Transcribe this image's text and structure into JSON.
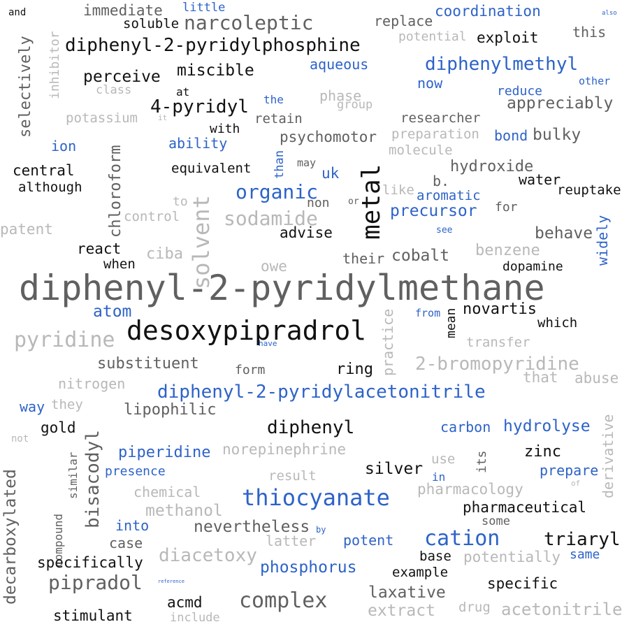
{
  "palette": {
    "black": "#111111",
    "dark_gray": "#606060",
    "light_gray": "#b8b8b8",
    "blue": "#2d63c8"
  },
  "words": [
    "and",
    "immediate",
    "little",
    "coordination",
    "also",
    "soluble",
    "narcoleptic",
    "replace",
    "potential",
    "exploit",
    "this",
    "diphenyl-2-pyridylphosphine",
    "selectively",
    "inhibitor",
    "aqueous",
    "diphenylmethyl",
    "perceive",
    "miscible",
    "class",
    "at",
    "now",
    "reduce",
    "other",
    "the",
    "phase",
    "group",
    "appreciably",
    "4-pyridyl",
    "potassium",
    "it",
    "retain",
    "researcher",
    "with",
    "preparation",
    "bond",
    "bulky",
    "psychomotor",
    "ability",
    "ion",
    "molecule",
    "chloroform",
    "than",
    "may",
    "hydroxide",
    "equivalent",
    "central",
    "uk",
    "water",
    "although",
    "b.",
    "organic",
    "metal",
    "like",
    "aromatic",
    "reuptake",
    "to",
    "non",
    "or",
    "for",
    "solvent",
    "control",
    "sodamide",
    "precursor",
    "patent",
    "advise",
    "see",
    "widely",
    "behave",
    "react",
    "ciba",
    "their",
    "cobalt",
    "benzene",
    "when",
    "owe",
    "dopamine",
    "diphenyl-2-pyridylmethane",
    "atom",
    "from",
    "mean",
    "novartis",
    "desoxypipradrol",
    "which",
    "pyridine",
    "have",
    "practice",
    "transfer",
    "substituent",
    "2-bromopyridine",
    "form",
    "ring",
    "nitrogen",
    "that",
    "abuse",
    "diphenyl-2-pyridylacetonitrile",
    "way",
    "they",
    "lipophilic",
    "gold",
    "diphenyl",
    "carbon",
    "hydrolyse",
    "not",
    "derivative",
    "norepinephrine",
    "piperidine",
    "zinc",
    "similar",
    "bisacodyl",
    "its",
    "use",
    "decarboxylated",
    "presence",
    "silver",
    "prepare",
    "result",
    "in",
    "of",
    "chemical",
    "pharmacology",
    "thiocyanate",
    "methanol",
    "compound",
    "pharmaceutical",
    "into",
    "nevertheless",
    "some",
    "by",
    "cation",
    "triaryl",
    "case",
    "latter",
    "potent",
    "diacetoxy",
    "same",
    "specifically",
    "base",
    "potentially",
    "phosphorus",
    "example",
    "reference",
    "pipradol",
    "specific",
    "laxative",
    "complex",
    "acmd",
    "stimulant",
    "drug",
    "acetonitrile",
    "extract",
    "include"
  ]
}
